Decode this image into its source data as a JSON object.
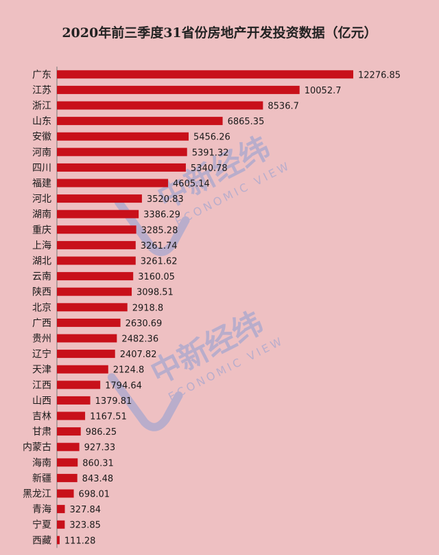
{
  "chart_data": {
    "type": "bar",
    "orientation": "horizontal",
    "title": "2020年前三季度31省份房地产开发投资数据（亿元）",
    "categories": [
      "广东",
      "江苏",
      "浙江",
      "山东",
      "安徽",
      "河南",
      "四川",
      "福建",
      "河北",
      "湖南",
      "重庆",
      "上海",
      "湖北",
      "云南",
      "陕西",
      "北京",
      "广西",
      "贵州",
      "辽宁",
      "天津",
      "江西",
      "山西",
      "吉林",
      "甘肃",
      "内蒙古",
      "海南",
      "新疆",
      "黑龙江",
      "青海",
      "宁夏",
      "西藏"
    ],
    "values": [
      12276.85,
      10052.7,
      8536.7,
      6865.35,
      5456.26,
      5391.32,
      5340.78,
      4605.14,
      3520.83,
      3386.29,
      3285.28,
      3261.74,
      3261.62,
      3160.05,
      3098.51,
      2918.8,
      2630.69,
      2482.36,
      2407.82,
      2124.8,
      1794.64,
      1379.81,
      1167.51,
      986.25,
      927.33,
      860.31,
      843.48,
      698.01,
      327.84,
      323.85,
      111.28
    ],
    "value_labels": [
      "12276.85",
      "10052.7",
      "8536.7",
      "6865.35",
      "5456.26",
      "5391.32",
      "5340.78",
      "4605.14",
      "3520.83",
      "3386.29",
      "3285.28",
      "3261.74",
      "3261.62",
      "3160.05",
      "3098.51",
      "2918.8",
      "2630.69",
      "2482.36",
      "2407.82",
      "2124.8",
      "1794.64",
      "1379.81",
      "1167.51",
      "986.25",
      "927.33",
      "860.31",
      "843.48",
      "698.01",
      "327.84",
      "323.85",
      "111.28"
    ],
    "bar_color": "#c8101a",
    "background_color": "#eec0c2",
    "grid": false
  },
  "watermark": {
    "brand_cn": "中新经纬",
    "brand_en": "ECONOMIC VIEW",
    "color": "#8f9fd4"
  }
}
